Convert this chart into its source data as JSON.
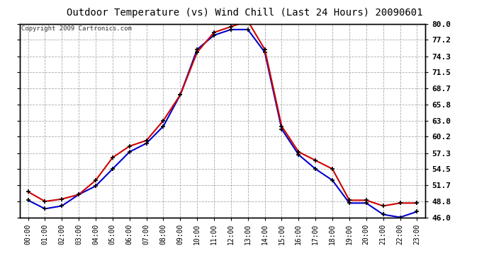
{
  "title": "Outdoor Temperature (vs) Wind Chill (Last 24 Hours) 20090601",
  "copyright": "Copyright 2009 Cartronics.com",
  "hours": [
    "00:00",
    "01:00",
    "02:00",
    "03:00",
    "04:00",
    "05:00",
    "06:00",
    "07:00",
    "08:00",
    "09:00",
    "10:00",
    "11:00",
    "12:00",
    "13:00",
    "14:00",
    "15:00",
    "16:00",
    "17:00",
    "18:00",
    "19:00",
    "20:00",
    "21:00",
    "22:00",
    "23:00"
  ],
  "temp": [
    50.5,
    48.8,
    49.2,
    50.0,
    52.5,
    56.5,
    58.5,
    59.5,
    63.0,
    67.5,
    75.0,
    78.5,
    79.5,
    80.5,
    75.5,
    62.0,
    57.5,
    56.0,
    54.5,
    49.0,
    49.0,
    48.0,
    48.5,
    48.5
  ],
  "windchill": [
    49.0,
    47.5,
    48.0,
    50.0,
    51.5,
    54.5,
    57.5,
    59.0,
    62.0,
    67.5,
    75.5,
    78.0,
    79.0,
    79.0,
    75.0,
    61.5,
    57.0,
    54.5,
    52.5,
    48.5,
    48.5,
    46.5,
    46.0,
    47.0
  ],
  "temp_color": "#cc0000",
  "windchill_color": "#0000cc",
  "marker": "+",
  "marker_color": "#000000",
  "marker_size": 5,
  "marker_linewidth": 1.2,
  "line_width": 1.5,
  "ylim": [
    46.0,
    80.0
  ],
  "yticks": [
    46.0,
    48.8,
    51.7,
    54.5,
    57.3,
    60.2,
    63.0,
    65.8,
    68.7,
    71.5,
    74.3,
    77.2,
    80.0
  ],
  "background_color": "#ffffff",
  "grid_color": "#aaaaaa",
  "grid_style": "--",
  "title_fontsize": 10,
  "axis_label_fontsize": 7,
  "ytick_fontsize": 8,
  "copyright_fontsize": 6.5,
  "border_color": "#000000"
}
